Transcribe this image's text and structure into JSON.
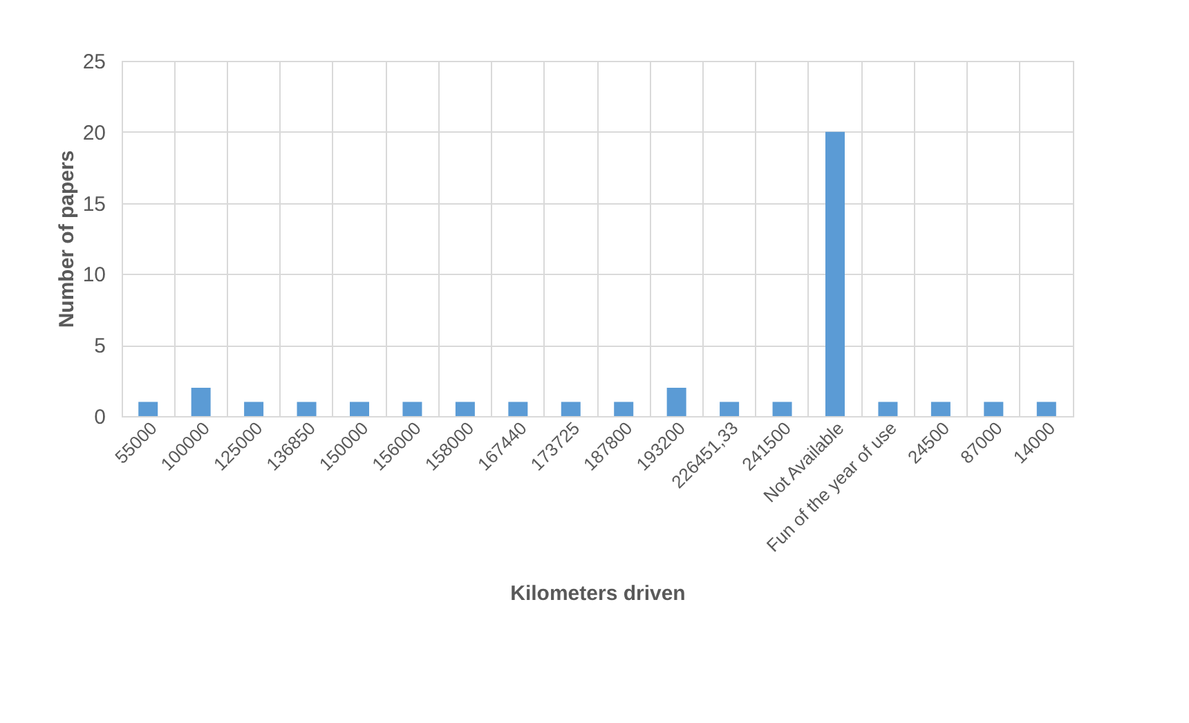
{
  "chart_data": {
    "type": "bar",
    "xlabel": "Kilometers driven",
    "ylabel": "Number of papers",
    "categories": [
      "55000",
      "100000",
      "125000",
      "136850",
      "150000",
      "156000",
      "158000",
      "167440",
      "173725",
      "187800",
      "193200",
      "226451,33",
      "241500",
      "Not Available",
      "Fun of the year of use",
      "24500",
      "87000",
      "14000"
    ],
    "values": [
      1,
      2,
      1,
      1,
      1,
      1,
      1,
      1,
      1,
      1,
      2,
      1,
      1,
      20,
      1,
      1,
      1,
      1
    ],
    "color": "#5b9bd5",
    "ylim": [
      0,
      25
    ],
    "yticks": [
      0,
      5,
      10,
      15,
      20,
      25
    ],
    "grid": true
  }
}
